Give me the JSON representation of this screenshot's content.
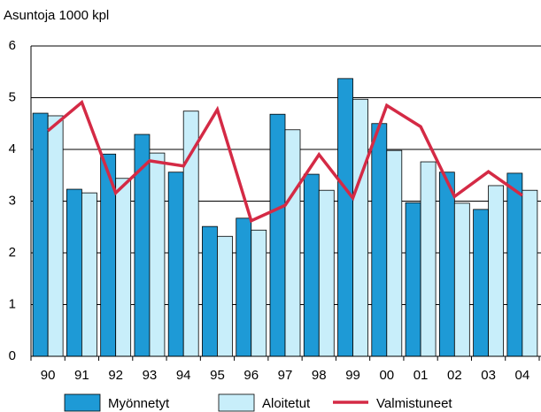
{
  "chart_data": {
    "type": "bar-line",
    "title": "Asuntoja 1000 kpl",
    "categories": [
      "90",
      "91",
      "92",
      "93",
      "94",
      "95",
      "96",
      "97",
      "98",
      "99",
      "00",
      "01",
      "02",
      "03",
      "04"
    ],
    "series": [
      {
        "name": "Myönnetyt",
        "type": "bar",
        "color": "#1e9ad6",
        "values": [
          4.7,
          3.23,
          3.91,
          4.29,
          3.56,
          2.51,
          2.67,
          4.68,
          3.52,
          5.37,
          4.5,
          2.97,
          3.56,
          2.84,
          3.54
        ]
      },
      {
        "name": "Aloitetut",
        "type": "bar",
        "color": "#c8eefa",
        "values": [
          4.65,
          3.16,
          3.44,
          3.93,
          4.74,
          2.32,
          2.44,
          4.38,
          3.21,
          4.97,
          3.98,
          3.76,
          2.96,
          3.3,
          3.21
        ]
      },
      {
        "name": "Valmistuneet",
        "type": "line",
        "color": "#d42a45",
        "values": [
          4.36,
          4.91,
          3.16,
          3.78,
          3.68,
          4.77,
          2.62,
          2.92,
          3.9,
          3.06,
          4.85,
          4.44,
          3.09,
          3.57,
          3.11
        ]
      }
    ],
    "ylim": [
      0,
      6
    ],
    "yticks": [
      0,
      1,
      2,
      3,
      4,
      5,
      6
    ],
    "grid": true,
    "legend": "bottom"
  }
}
